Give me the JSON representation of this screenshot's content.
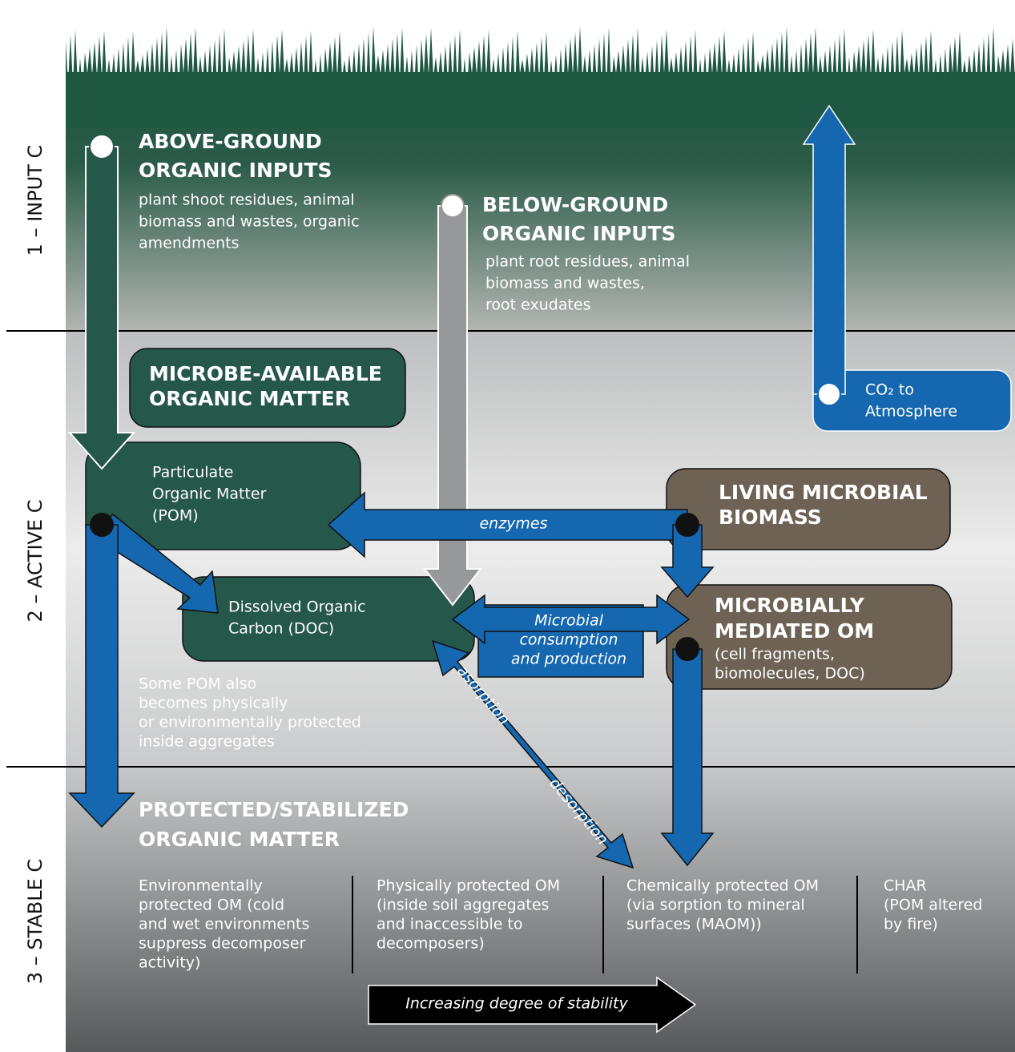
{
  "zones": [
    "1 – INPUT C",
    "2 – ACTIVE C",
    "3 – STABLE C"
  ],
  "above_ground": {
    "title": [
      "ABOVE-GROUND",
      "ORGANIC INPUTS"
    ],
    "description": [
      "plant shoot residues, animal",
      "biomass and wastes, organic",
      "amendments"
    ]
  },
  "below_ground": {
    "title": [
      "BELOW-GROUND",
      "ORGANIC INPUTS"
    ],
    "description": [
      "plant root residues, animal",
      "biomass and wastes,",
      "root exudates"
    ]
  },
  "co2": [
    "CO₂ to",
    "Atmosphere"
  ],
  "microbe_available": [
    "MICROBE-AVAILABLE",
    "ORGANIC MATTER"
  ],
  "pom": [
    "Particulate",
    "Organic Matter",
    "(POM)"
  ],
  "living_biomass": [
    "LIVING MICROBIAL",
    "BIOMASS"
  ],
  "doc": [
    "Dissolved Organic",
    "Carbon (DOC)"
  ],
  "microbially_mediated": {
    "title": [
      "MICROBIALLY",
      "MEDIATED OM"
    ],
    "description": [
      "(cell fragments,",
      "biomolecules, DOC)"
    ]
  },
  "enzymes": "enzymes",
  "microbial_consumption": [
    "Microbial",
    "consumption",
    "and production"
  ],
  "sorption": "asorption",
  "desorption": "desorption",
  "pom_note": [
    "Some POM also",
    "becomes physically",
    "or environmentally protected",
    "inside aggregates"
  ],
  "protected": {
    "title": [
      "PROTECTED/STABILIZED",
      "ORGANIC MATTER"
    ],
    "columns": [
      [
        "Environmentally",
        "protected OM (cold",
        "and wet environments",
        "suppress decomposer",
        "activity)"
      ],
      [
        "Physically protected OM",
        "(inside soil aggregates",
        "and inaccessible to",
        "decomposers)"
      ],
      [
        "Chemically protected OM",
        "(via sorption to mineral",
        "surfaces (MAOM))"
      ],
      [
        "CHAR",
        "(POM altered",
        "by fire)"
      ]
    ]
  },
  "stability_arrow": "Increasing degree of stability"
}
